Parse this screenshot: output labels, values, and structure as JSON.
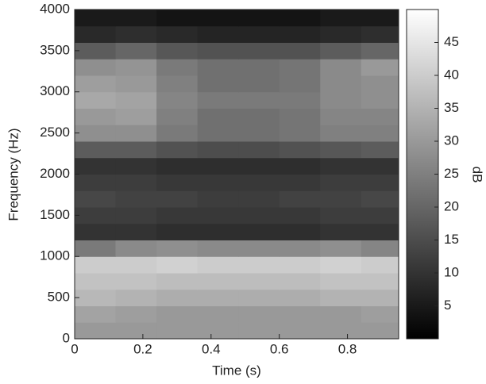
{
  "chart_data": {
    "type": "heatmap",
    "xlabel": "Time (s)",
    "ylabel": "Frequency (Hz)",
    "colorbar_label": "dB",
    "xlim": [
      0,
      0.95
    ],
    "xticks": [
      0,
      0.2,
      0.4,
      0.6,
      0.8
    ],
    "ylim": [
      0,
      4000
    ],
    "yticks": [
      0,
      500,
      1000,
      1500,
      2000,
      2500,
      3000,
      3500,
      4000
    ],
    "clim": [
      0,
      50
    ],
    "cticks": [
      5,
      10,
      15,
      20,
      25,
      30,
      35,
      40,
      45
    ],
    "colormap": "gray",
    "xbins": [
      0,
      0.12,
      0.24,
      0.36,
      0.48,
      0.6,
      0.72,
      0.84,
      0.95
    ],
    "ybins": [
      0,
      200,
      400,
      600,
      800,
      1000,
      1200,
      1400,
      1600,
      1800,
      2000,
      2200,
      2400,
      2600,
      2800,
      3000,
      3200,
      3400,
      3600,
      3800,
      4000
    ],
    "z": [
      [
        30,
        30,
        30,
        30,
        30,
        30,
        30,
        30
      ],
      [
        32,
        31,
        30,
        30,
        30,
        30,
        30,
        31
      ],
      [
        36,
        35,
        34,
        34,
        34,
        34,
        35,
        35
      ],
      [
        38,
        38,
        37,
        37,
        37,
        37,
        38,
        38
      ],
      [
        40,
        40,
        41,
        40,
        40,
        40,
        41,
        40
      ],
      [
        24,
        27,
        28,
        27,
        27,
        27,
        28,
        26
      ],
      [
        10,
        10,
        9,
        9,
        9,
        9,
        10,
        10
      ],
      [
        12,
        12,
        11,
        11,
        11,
        11,
        12,
        12
      ],
      [
        14,
        13,
        13,
        12,
        12,
        13,
        13,
        14
      ],
      [
        12,
        12,
        11,
        11,
        11,
        11,
        12,
        12
      ],
      [
        10,
        10,
        9,
        9,
        9,
        9,
        10,
        10
      ],
      [
        18,
        18,
        16,
        15,
        15,
        16,
        17,
        18
      ],
      [
        28,
        28,
        24,
        22,
        22,
        23,
        25,
        25
      ],
      [
        30,
        31,
        25,
        22,
        22,
        23,
        26,
        26
      ],
      [
        33,
        32,
        26,
        24,
        24,
        24,
        27,
        28
      ],
      [
        31,
        30,
        25,
        22,
        22,
        23,
        27,
        28
      ],
      [
        28,
        29,
        24,
        22,
        22,
        23,
        27,
        30
      ],
      [
        18,
        20,
        17,
        16,
        16,
        16,
        18,
        20
      ],
      [
        8,
        9,
        8,
        7,
        7,
        7,
        8,
        9
      ],
      [
        5,
        5,
        4,
        4,
        4,
        4,
        5,
        5
      ]
    ]
  }
}
